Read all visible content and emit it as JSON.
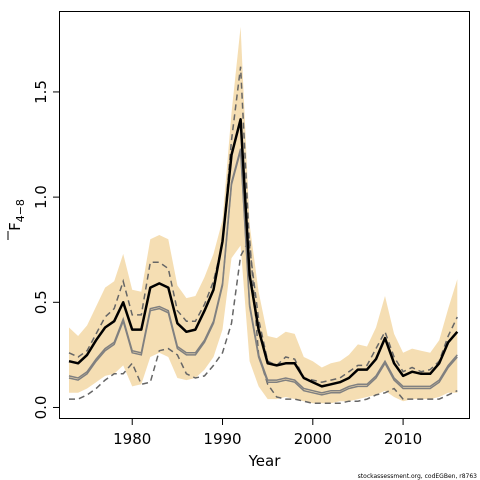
{
  "chart_data": {
    "type": "line",
    "xlabel": "Year",
    "ylabel": "F",
    "ylabel_subscript": "4−8",
    "xlim": [
      1972,
      2017.3
    ],
    "ylim": [
      -0.05,
      1.88
    ],
    "x_ticks": [
      1980,
      1990,
      2000,
      2010
    ],
    "y_ticks": [
      0.0,
      0.5,
      1.0,
      1.5
    ],
    "y_tick_labels": [
      "0.0",
      "0.5",
      "1.0",
      "1.5"
    ],
    "grid": false,
    "legend": "none",
    "credit": "stockassessment.org, codEGBen, r8763",
    "colors": {
      "band": "#f5deb3",
      "estimate": "#000000",
      "inner_ci": "#808080",
      "outer_dashed": "#666666"
    },
    "x": [
      1973,
      1974,
      1975,
      1976,
      1977,
      1978,
      1979,
      1980,
      1981,
      1982,
      1983,
      1984,
      1985,
      1986,
      1987,
      1988,
      1989,
      1990,
      1991,
      1992,
      1993,
      1994,
      1995,
      1996,
      1997,
      1998,
      1999,
      2000,
      2001,
      2002,
      2003,
      2004,
      2005,
      2006,
      2007,
      2008,
      2009,
      2010,
      2011,
      2012,
      2013,
      2014,
      2015,
      2016
    ],
    "series": [
      {
        "role": "band_upper",
        "values": [
          0.38,
          0.34,
          0.39,
          0.48,
          0.57,
          0.6,
          0.73,
          0.56,
          0.55,
          0.8,
          0.82,
          0.8,
          0.58,
          0.52,
          0.53,
          0.62,
          0.73,
          0.89,
          1.4,
          1.81,
          0.87,
          0.55,
          0.34,
          0.33,
          0.36,
          0.35,
          0.24,
          0.22,
          0.19,
          0.21,
          0.22,
          0.25,
          0.3,
          0.29,
          0.38,
          0.53,
          0.35,
          0.26,
          0.28,
          0.27,
          0.26,
          0.32,
          0.47,
          0.61
        ]
      },
      {
        "role": "band_lower",
        "values": [
          0.07,
          0.07,
          0.09,
          0.12,
          0.15,
          0.16,
          0.2,
          0.1,
          0.11,
          0.24,
          0.26,
          0.24,
          0.14,
          0.13,
          0.14,
          0.18,
          0.24,
          0.37,
          0.71,
          0.77,
          0.22,
          0.1,
          0.04,
          0.04,
          0.05,
          0.04,
          0.03,
          0.02,
          0.02,
          0.02,
          0.03,
          0.03,
          0.04,
          0.05,
          0.06,
          0.08,
          0.05,
          0.03,
          0.04,
          0.04,
          0.04,
          0.05,
          0.07,
          0.07
        ]
      },
      {
        "role": "outer_dashed_upper",
        "values": [
          0.26,
          0.24,
          0.27,
          0.35,
          0.43,
          0.47,
          0.6,
          0.44,
          0.44,
          0.69,
          0.69,
          0.66,
          0.46,
          0.41,
          0.41,
          0.49,
          0.6,
          0.78,
          1.27,
          1.62,
          0.76,
          0.42,
          0.22,
          0.2,
          0.24,
          0.23,
          0.14,
          0.13,
          0.12,
          0.13,
          0.14,
          0.17,
          0.2,
          0.2,
          0.28,
          0.36,
          0.24,
          0.17,
          0.19,
          0.17,
          0.18,
          0.22,
          0.34,
          0.43
        ]
      },
      {
        "role": "outer_dashed_lower",
        "values": [
          0.04,
          0.04,
          0.06,
          0.09,
          0.13,
          0.16,
          0.16,
          0.21,
          0.11,
          0.12,
          0.27,
          0.28,
          0.25,
          0.16,
          0.14,
          0.15,
          0.2,
          0.26,
          0.4,
          0.72,
          0.8,
          0.25,
          0.11,
          0.05,
          0.04,
          0.04,
          0.03,
          0.02,
          0.02,
          0.02,
          0.02,
          0.03,
          0.03,
          0.04,
          0.06,
          0.07,
          0.09,
          0.04,
          0.04,
          0.04,
          0.04,
          0.04,
          0.06,
          0.08
        ]
      },
      {
        "role": "inner_ci_upper",
        "values": [
          0.15,
          0.14,
          0.17,
          0.23,
          0.28,
          0.31,
          0.42,
          0.27,
          0.26,
          0.47,
          0.48,
          0.46,
          0.29,
          0.26,
          0.26,
          0.32,
          0.41,
          0.59,
          1.07,
          1.23,
          0.49,
          0.25,
          0.13,
          0.13,
          0.14,
          0.13,
          0.09,
          0.08,
          0.07,
          0.08,
          0.08,
          0.1,
          0.11,
          0.11,
          0.15,
          0.22,
          0.14,
          0.1,
          0.1,
          0.1,
          0.1,
          0.13,
          0.2,
          0.25
        ]
      },
      {
        "role": "inner_ci_lower",
        "values": [
          0.14,
          0.13,
          0.16,
          0.22,
          0.27,
          0.3,
          0.41,
          0.26,
          0.25,
          0.46,
          0.47,
          0.45,
          0.28,
          0.25,
          0.25,
          0.31,
          0.4,
          0.58,
          1.06,
          1.22,
          0.48,
          0.24,
          0.12,
          0.12,
          0.13,
          0.12,
          0.08,
          0.07,
          0.06,
          0.07,
          0.07,
          0.09,
          0.1,
          0.1,
          0.14,
          0.21,
          0.13,
          0.09,
          0.09,
          0.09,
          0.09,
          0.12,
          0.19,
          0.24
        ]
      },
      {
        "role": "estimate",
        "values": [
          0.22,
          0.21,
          0.25,
          0.32,
          0.38,
          0.41,
          0.5,
          0.37,
          0.37,
          0.57,
          0.59,
          0.57,
          0.4,
          0.36,
          0.37,
          0.46,
          0.56,
          0.79,
          1.2,
          1.37,
          0.63,
          0.37,
          0.21,
          0.2,
          0.21,
          0.21,
          0.14,
          0.12,
          0.1,
          0.11,
          0.12,
          0.14,
          0.18,
          0.18,
          0.23,
          0.33,
          0.21,
          0.15,
          0.17,
          0.16,
          0.16,
          0.21,
          0.31,
          0.36
        ]
      }
    ]
  }
}
